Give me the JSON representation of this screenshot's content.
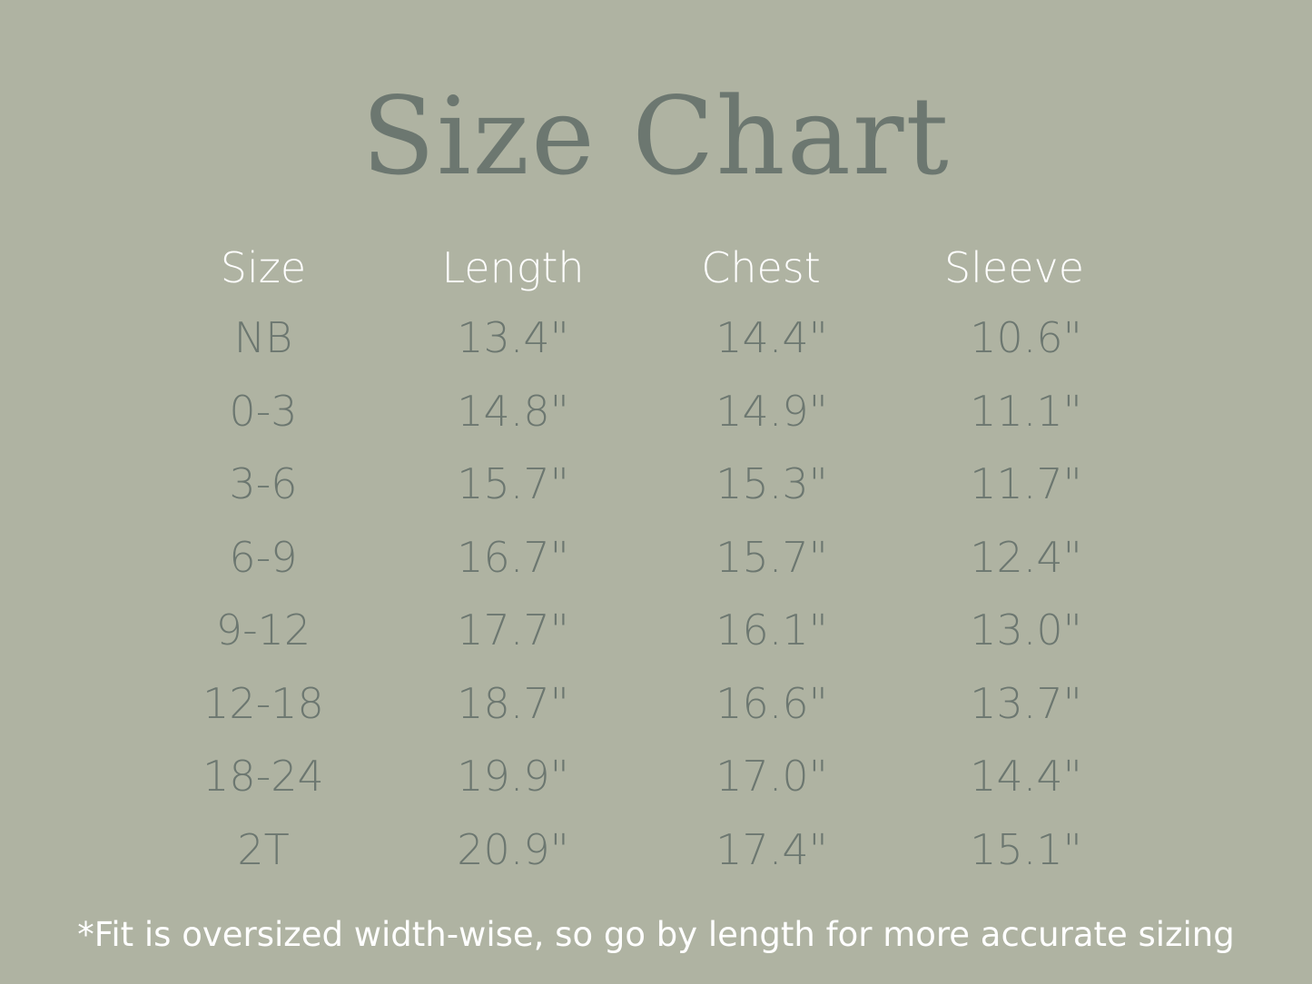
{
  "title": "Size Chart",
  "table": {
    "headers": [
      "Size",
      "Length",
      "Chest",
      "Sleeve"
    ],
    "rows": [
      [
        "NB",
        "13.4\"",
        "14.4\"",
        "10.6\""
      ],
      [
        "0-3",
        "14.8\"",
        "14.9\"",
        "11.1\""
      ],
      [
        "3-6",
        "15.7\"",
        "15.3\"",
        "11.7\""
      ],
      [
        "6-9",
        "16.7\"",
        "15.7\"",
        "12.4\""
      ],
      [
        "9-12",
        "17.7\"",
        "16.1\"",
        "13.0\""
      ],
      [
        "12-18",
        "18.7\"",
        "16.6\"",
        "13.7\""
      ],
      [
        "18-24",
        "19.9\"",
        "17.0\"",
        "14.4\""
      ],
      [
        "2T",
        "20.9\"",
        "17.4\"",
        "15.1\""
      ]
    ]
  },
  "footnote": "*Fit is oversized width-wise, so go by length for more accurate sizing",
  "colors": {
    "background": "#afb3a2",
    "text": "#6c7770",
    "header": "#ffffff"
  }
}
